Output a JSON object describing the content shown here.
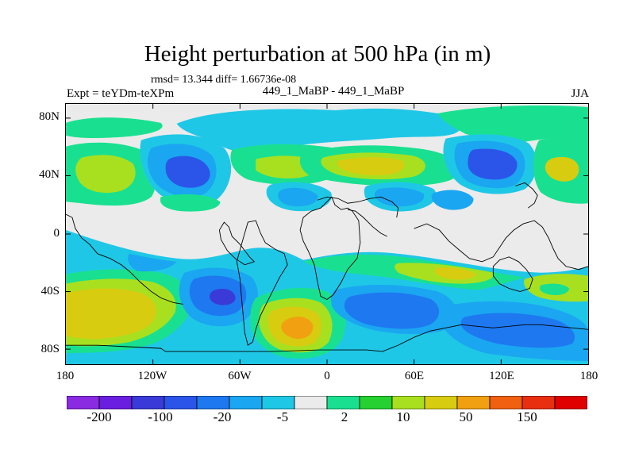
{
  "title": "Height perturbation at 500 hPa (in m)",
  "stats": "rmsd= 13.344 diff= 1.66736e-08",
  "left_label": "Expt = teYDm-teXPm",
  "center_label": "449_1_MaBP - 449_1_MaBP",
  "right_label": "JJA",
  "lat_ticks": [
    "80N",
    "40N",
    "0",
    "40S",
    "80S"
  ],
  "lon_ticks": [
    "180",
    "120W",
    "60W",
    "0",
    "60E",
    "120E",
    "180"
  ],
  "colorbar": {
    "colors": [
      "#8a2be2",
      "#6a1ee0",
      "#3a3ad8",
      "#2b55e8",
      "#1e78f0",
      "#1aa6f0",
      "#1fc7e6",
      "#ebebeb",
      "#19e090",
      "#26d030",
      "#a8e020",
      "#d8cc10",
      "#f0a010",
      "#f06010",
      "#e83010",
      "#e00000"
    ],
    "labels": [
      "-200",
      "-100",
      "-20",
      "-5",
      "2",
      "10",
      "50",
      "150"
    ]
  },
  "palette": {
    "land_outline": "#000000",
    "neutral": "#ebebeb",
    "cyan": "#1fc7e6",
    "sky": "#1aa6f0",
    "mid_blue": "#1e78f0",
    "blue": "#2b55e8",
    "dark_blue": "#3a3ad8",
    "teal_green": "#19e090",
    "green": "#26d030",
    "yellow_green": "#a8e020",
    "yellow": "#d8cc10",
    "orange": "#f0a010"
  }
}
